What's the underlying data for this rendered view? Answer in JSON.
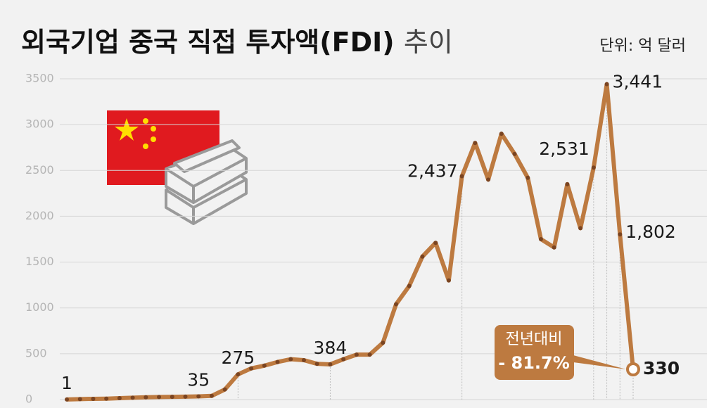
{
  "chart_data": {
    "type": "line",
    "title": "외국기업 중국 직접 투자액(FDI) 추이",
    "unit": "단위: 억 달러",
    "categories": [
      null,
      null,
      null,
      null,
      null,
      null,
      null,
      null,
      null,
      null,
      null,
      null,
      null,
      null,
      null,
      null,
      null,
      null,
      null,
      null,
      null,
      null,
      null,
      null,
      null,
      null,
      null,
      null,
      null,
      null,
      null,
      null,
      null,
      null,
      null,
      null,
      null,
      null,
      null,
      null,
      null,
      null,
      null,
      null
    ],
    "values": [
      1,
      5,
      8,
      10,
      15,
      20,
      25,
      28,
      30,
      32,
      35,
      40,
      110,
      275,
      340,
      370,
      410,
      440,
      430,
      390,
      384,
      440,
      490,
      490,
      620,
      1040,
      1240,
      1560,
      1710,
      1300,
      2437,
      2800,
      2400,
      2900,
      2680,
      2420,
      1750,
      1660,
      2350,
      1870,
      2531,
      3441,
      1802,
      330
    ],
    "value_labels": [
      "1",
      null,
      null,
      null,
      null,
      null,
      null,
      null,
      null,
      null,
      "35",
      null,
      null,
      "275",
      null,
      null,
      null,
      null,
      null,
      null,
      "384",
      null,
      null,
      null,
      null,
      null,
      null,
      null,
      null,
      null,
      "2,437",
      null,
      null,
      null,
      null,
      null,
      null,
      null,
      null,
      null,
      "2,531",
      "3,441",
      "1,802",
      "330"
    ],
    "color": "#bd7a40",
    "marker_color": "#7a4421",
    "ylim": [
      0,
      3500
    ],
    "yticks": [
      0,
      500,
      1000,
      1500,
      2000,
      2500,
      3000,
      3500
    ],
    "grid": true,
    "annotation": [
      "전년대비",
      "- 81.7%"
    ]
  }
}
